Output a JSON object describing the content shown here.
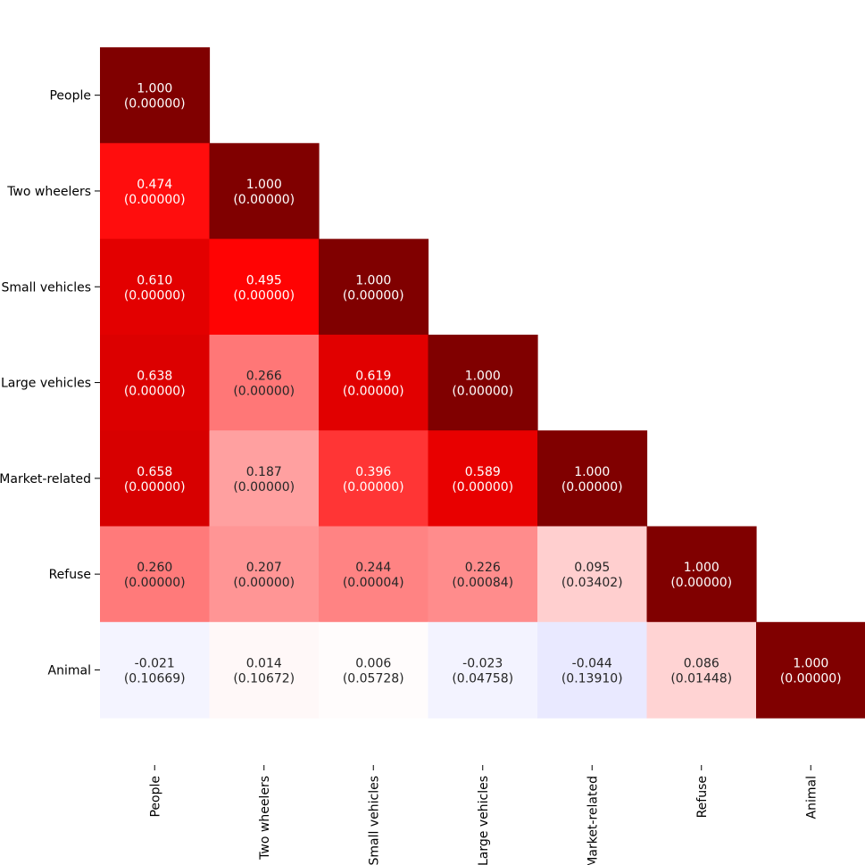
{
  "chart_data": {
    "type": "heatmap",
    "title": "",
    "xlabel": "",
    "ylabel": "",
    "rows": [
      "People",
      "Two wheelers",
      "Small vehicles",
      "Large vehicles",
      "Market-related",
      "Refuse",
      "Animal"
    ],
    "columns": [
      "People",
      "Two wheelers",
      "Small vehicles",
      "Large vehicles",
      "Market-related",
      "Refuse",
      "Animal"
    ],
    "mask": "upper-triangle",
    "value_range": [
      -1,
      1
    ],
    "colormap": "seismic",
    "cells": [
      {
        "row": 0,
        "col": 0,
        "value": 1.0,
        "value_label": "1.000",
        "p_label": "(0.00000)"
      },
      {
        "row": 1,
        "col": 0,
        "value": 0.474,
        "value_label": "0.474",
        "p_label": "(0.00000)"
      },
      {
        "row": 1,
        "col": 1,
        "value": 1.0,
        "value_label": "1.000",
        "p_label": "(0.00000)"
      },
      {
        "row": 2,
        "col": 0,
        "value": 0.61,
        "value_label": "0.610",
        "p_label": "(0.00000)"
      },
      {
        "row": 2,
        "col": 1,
        "value": 0.495,
        "value_label": "0.495",
        "p_label": "(0.00000)"
      },
      {
        "row": 2,
        "col": 2,
        "value": 1.0,
        "value_label": "1.000",
        "p_label": "(0.00000)"
      },
      {
        "row": 3,
        "col": 0,
        "value": 0.638,
        "value_label": "0.638",
        "p_label": "(0.00000)"
      },
      {
        "row": 3,
        "col": 1,
        "value": 0.266,
        "value_label": "0.266",
        "p_label": "(0.00000)"
      },
      {
        "row": 3,
        "col": 2,
        "value": 0.619,
        "value_label": "0.619",
        "p_label": "(0.00000)"
      },
      {
        "row": 3,
        "col": 3,
        "value": 1.0,
        "value_label": "1.000",
        "p_label": "(0.00000)"
      },
      {
        "row": 4,
        "col": 0,
        "value": 0.658,
        "value_label": "0.658",
        "p_label": "(0.00000)"
      },
      {
        "row": 4,
        "col": 1,
        "value": 0.187,
        "value_label": "0.187",
        "p_label": "(0.00000)"
      },
      {
        "row": 4,
        "col": 2,
        "value": 0.396,
        "value_label": "0.396",
        "p_label": "(0.00000)"
      },
      {
        "row": 4,
        "col": 3,
        "value": 0.589,
        "value_label": "0.589",
        "p_label": "(0.00000)"
      },
      {
        "row": 4,
        "col": 4,
        "value": 1.0,
        "value_label": "1.000",
        "p_label": "(0.00000)"
      },
      {
        "row": 5,
        "col": 0,
        "value": 0.26,
        "value_label": "0.260",
        "p_label": "(0.00000)"
      },
      {
        "row": 5,
        "col": 1,
        "value": 0.207,
        "value_label": "0.207",
        "p_label": "(0.00000)"
      },
      {
        "row": 5,
        "col": 2,
        "value": 0.244,
        "value_label": "0.244",
        "p_label": "(0.00004)"
      },
      {
        "row": 5,
        "col": 3,
        "value": 0.226,
        "value_label": "0.226",
        "p_label": "(0.00084)"
      },
      {
        "row": 5,
        "col": 4,
        "value": 0.095,
        "value_label": "0.095",
        "p_label": "(0.03402)"
      },
      {
        "row": 5,
        "col": 5,
        "value": 1.0,
        "value_label": "1.000",
        "p_label": "(0.00000)"
      },
      {
        "row": 6,
        "col": 0,
        "value": -0.021,
        "value_label": "-0.021",
        "p_label": "(0.10669)"
      },
      {
        "row": 6,
        "col": 1,
        "value": 0.014,
        "value_label": "0.014",
        "p_label": "(0.10672)"
      },
      {
        "row": 6,
        "col": 2,
        "value": 0.006,
        "value_label": "0.006",
        "p_label": "(0.05728)"
      },
      {
        "row": 6,
        "col": 3,
        "value": -0.023,
        "value_label": "-0.023",
        "p_label": "(0.04758)"
      },
      {
        "row": 6,
        "col": 4,
        "value": -0.044,
        "value_label": "-0.044",
        "p_label": "(0.13910)"
      },
      {
        "row": 6,
        "col": 5,
        "value": 0.086,
        "value_label": "0.086",
        "p_label": "(0.01448)"
      },
      {
        "row": 6,
        "col": 6,
        "value": 1.0,
        "value_label": "1.000",
        "p_label": "(0.00000)"
      }
    ]
  }
}
